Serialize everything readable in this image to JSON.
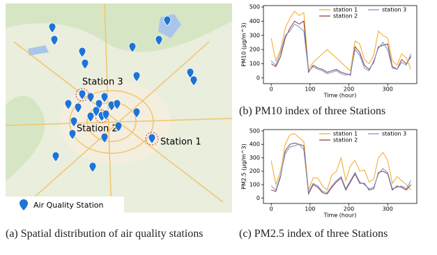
{
  "figure": {
    "map": {
      "legend": "Air Quality Station",
      "station_labels": [
        "Station 3",
        "Station 2",
        "Station 1"
      ]
    },
    "captions": [
      "(a) Spatial distribution of air quality stations",
      "(b) PM10 index of three Stations",
      "(c) PM2.5 index of three Stations"
    ]
  },
  "chart_data": [
    {
      "type": "line",
      "y_label": "PM10 (μg/m^3)",
      "x_label": "Time (hour)",
      "x": [
        0,
        12,
        24,
        36,
        48,
        60,
        72,
        84,
        96,
        108,
        120,
        132,
        144,
        156,
        168,
        180,
        192,
        204,
        216,
        228,
        240,
        252,
        264,
        276,
        288,
        300,
        312,
        324,
        336,
        348,
        360
      ],
      "xlim": [
        -20,
        375
      ],
      "xticks": [
        0,
        100,
        200,
        300
      ],
      "ylim": [
        -40,
        510
      ],
      "yticks": [
        0,
        100,
        200,
        300,
        400,
        500
      ],
      "series": [
        {
          "name": "station 1",
          "color": "#f5a623",
          "values": [
            280,
            120,
            200,
            350,
            420,
            470,
            440,
            460,
            60,
            110,
            140,
            170,
            200,
            170,
            140,
            110,
            80,
            50,
            260,
            240,
            130,
            100,
            160,
            330,
            300,
            280,
            120,
            90,
            170,
            140,
            60
          ]
        },
        {
          "name": "station 2",
          "color": "#8b3a2f",
          "values": [
            100,
            80,
            150,
            280,
            350,
            400,
            380,
            400,
            40,
            90,
            70,
            60,
            40,
            50,
            60,
            40,
            30,
            20,
            220,
            180,
            90,
            60,
            110,
            220,
            230,
            240,
            80,
            60,
            130,
            100,
            150
          ]
        },
        {
          "name": "station 3",
          "color": "#6b8fd6",
          "values": [
            120,
            90,
            180,
            300,
            330,
            380,
            360,
            330,
            50,
            80,
            60,
            50,
            30,
            40,
            50,
            30,
            20,
            30,
            200,
            160,
            70,
            50,
            120,
            210,
            250,
            200,
            70,
            60,
            110,
            90,
            170
          ]
        }
      ]
    },
    {
      "type": "line",
      "y_label": "PM2.5 (μg/m^3)",
      "x_label": "Time (hour)",
      "x": [
        0,
        12,
        24,
        36,
        48,
        60,
        72,
        84,
        96,
        108,
        120,
        132,
        144,
        156,
        168,
        180,
        192,
        204,
        216,
        228,
        240,
        252,
        264,
        276,
        288,
        300,
        312,
        324,
        336,
        348,
        360
      ],
      "xlim": [
        -20,
        375
      ],
      "xticks": [
        0,
        100,
        200,
        300
      ],
      "ylim": [
        -40,
        510
      ],
      "yticks": [
        0,
        100,
        200,
        300,
        400,
        500
      ],
      "series": [
        {
          "name": "station 1",
          "color": "#f5a623",
          "values": [
            280,
            100,
            200,
            400,
            470,
            480,
            450,
            420,
            60,
            150,
            150,
            90,
            60,
            170,
            200,
            300,
            130,
            240,
            280,
            200,
            210,
            120,
            140,
            300,
            340,
            280,
            110,
            160,
            130,
            100,
            60
          ]
        },
        {
          "name": "station 2",
          "color": "#8b3a2f",
          "values": [
            60,
            50,
            160,
            350,
            400,
            410,
            400,
            390,
            30,
            100,
            80,
            40,
            30,
            80,
            120,
            150,
            60,
            120,
            180,
            110,
            110,
            60,
            70,
            190,
            200,
            180,
            60,
            90,
            80,
            60,
            100
          ]
        },
        {
          "name": "station 3",
          "color": "#6b8fd6",
          "values": [
            90,
            60,
            170,
            330,
            380,
            390,
            400,
            360,
            40,
            110,
            90,
            50,
            40,
            90,
            130,
            160,
            70,
            130,
            190,
            120,
            100,
            70,
            80,
            180,
            220,
            190,
            70,
            80,
            90,
            70,
            130
          ]
        }
      ]
    }
  ]
}
